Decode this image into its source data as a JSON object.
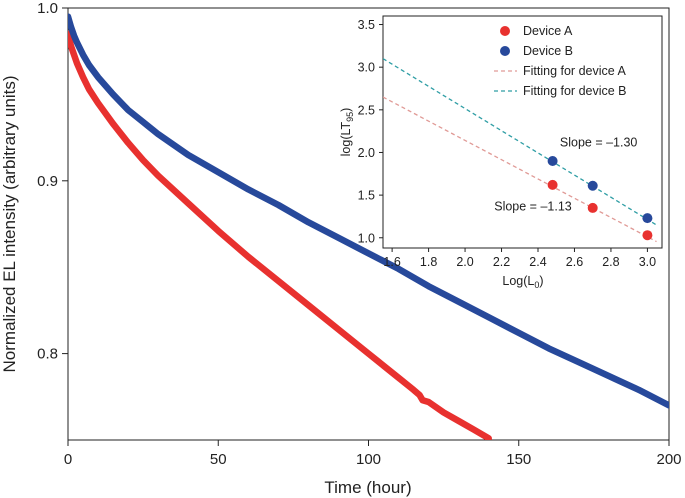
{
  "chart_data": [
    {
      "id": "main",
      "type": "line",
      "title": "",
      "xlabel": "Time (hour)",
      "ylabel": "Normalized EL intensity (arbitrary units)",
      "xlim": [
        0,
        200
      ],
      "ylim": [
        0.75,
        1.0
      ],
      "xticks": [
        0,
        50,
        100,
        150,
        200
      ],
      "xtick_labels": [
        "0",
        "50",
        "100",
        "150",
        "200"
      ],
      "yticks": [
        0.8,
        0.9,
        1.0
      ],
      "ytick_labels": [
        "0.8",
        "0.9",
        "1.0"
      ],
      "grid": false,
      "series": [
        {
          "name": "Device A",
          "color": "#e8312f",
          "x": [
            0,
            1,
            2,
            3,
            5,
            7,
            10,
            15,
            20,
            25,
            30,
            40,
            50,
            60,
            70,
            80,
            90,
            100,
            110,
            115,
            117,
            118,
            120,
            125,
            130,
            135,
            140
          ],
          "y": [
            0.985,
            0.978,
            0.973,
            0.968,
            0.96,
            0.953,
            0.945,
            0.933,
            0.922,
            0.912,
            0.903,
            0.887,
            0.871,
            0.856,
            0.842,
            0.828,
            0.814,
            0.8,
            0.786,
            0.779,
            0.776,
            0.773,
            0.772,
            0.766,
            0.761,
            0.756,
            0.751
          ]
        },
        {
          "name": "Device B",
          "color": "#27499b",
          "x": [
            0,
            1,
            2,
            3,
            5,
            7,
            10,
            15,
            20,
            25,
            30,
            40,
            50,
            60,
            70,
            80,
            90,
            100,
            110,
            120,
            130,
            140,
            150,
            160,
            170,
            180,
            190,
            200
          ],
          "y": [
            0.995,
            0.989,
            0.984,
            0.98,
            0.973,
            0.967,
            0.96,
            0.95,
            0.941,
            0.934,
            0.927,
            0.915,
            0.905,
            0.895,
            0.886,
            0.876,
            0.867,
            0.858,
            0.849,
            0.839,
            0.83,
            0.821,
            0.812,
            0.803,
            0.795,
            0.787,
            0.779,
            0.77
          ]
        }
      ]
    },
    {
      "id": "inset",
      "type": "scatter",
      "title": "",
      "xlabel": "Log(L0)",
      "ylabel": "log(LT95)",
      "xlabel_parts": {
        "main": "Log(L",
        "sub": "0",
        "end": ")"
      },
      "ylabel_parts": {
        "main": "log(LT",
        "sub": "95",
        "end": ")"
      },
      "xlim": [
        1.55,
        3.08
      ],
      "ylim": [
        0.88,
        3.6
      ],
      "xticks": [
        1.6,
        1.8,
        2.0,
        2.2,
        2.4,
        2.6,
        2.8,
        3.0
      ],
      "xtick_labels": [
        "1.6",
        "1.8",
        "2.0",
        "2.2",
        "2.4",
        "2.6",
        "2.8",
        "3.0"
      ],
      "yticks": [
        1.0,
        1.5,
        2.0,
        2.5,
        3.0,
        3.5
      ],
      "ytick_labels": [
        "1.0",
        "1.5",
        "2.0",
        "2.5",
        "3.0",
        "3.5"
      ],
      "legend_position": "top-right",
      "series": [
        {
          "name": "Device A",
          "color": "#e8312f",
          "x": [
            2.48,
            2.7,
            3.0
          ],
          "y": [
            1.62,
            1.35,
            1.03
          ]
        },
        {
          "name": "Device B",
          "color": "#27499b",
          "x": [
            2.48,
            2.7,
            3.0
          ],
          "y": [
            1.9,
            1.61,
            1.23
          ]
        }
      ],
      "fits": [
        {
          "name": "Fitting for device A",
          "color": "#e09a96",
          "x": [
            1.55,
            3.05
          ],
          "y": [
            2.65,
            0.955
          ]
        },
        {
          "name": "Fitting for device B",
          "color": "#2f9ea5",
          "x": [
            1.55,
            3.05
          ],
          "y": [
            3.1,
            1.15
          ]
        }
      ],
      "annotations": [
        {
          "text": "Slope = –1.30",
          "color": "#2f9cc0",
          "x": 2.52,
          "y": 2.07
        },
        {
          "text": "Slope = –1.13",
          "color": "#e8312f",
          "x": 2.16,
          "y": 1.32
        }
      ]
    }
  ]
}
